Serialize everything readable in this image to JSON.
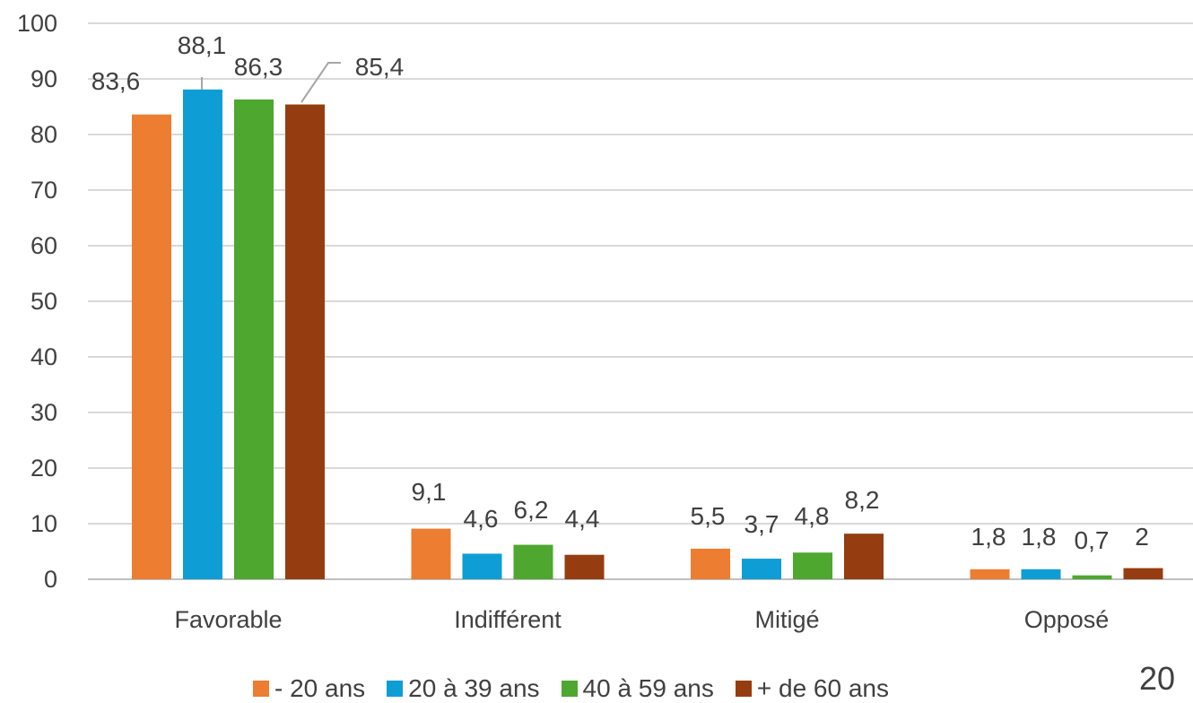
{
  "chart_data": {
    "type": "bar",
    "categories": [
      "Favorable",
      "Indifférent",
      "Mitigé",
      "Opposé"
    ],
    "series": [
      {
        "name": "- 20 ans",
        "color": "#ED7D31",
        "values": [
          83.6,
          9.1,
          5.5,
          1.8
        ],
        "labels": [
          "83,6",
          "9,1",
          "5,5",
          "1,8"
        ]
      },
      {
        "name": "20 à 39 ans",
        "color": "#0E9ED5",
        "values": [
          88.1,
          4.6,
          3.7,
          1.8
        ],
        "labels": [
          "88,1",
          "4,6",
          "3,7",
          "1,8"
        ]
      },
      {
        "name": "40 à 59 ans",
        "color": "#4EA72E",
        "values": [
          86.3,
          6.2,
          4.8,
          0.7
        ],
        "labels": [
          "86,3",
          "6,2",
          "4,8",
          "0,7"
        ]
      },
      {
        "name": "+ de 60 ans",
        "color": "#953D11",
        "values": [
          85.4,
          4.4,
          8.2,
          2
        ],
        "labels": [
          "85,4",
          "4,4",
          "8,2",
          "2"
        ]
      }
    ],
    "ylim": [
      0,
      100
    ],
    "yticks": [
      0,
      10,
      20,
      30,
      40,
      50,
      60,
      70,
      80,
      90,
      100
    ],
    "grid": true,
    "legend_position": "bottom"
  },
  "page_number": "20"
}
